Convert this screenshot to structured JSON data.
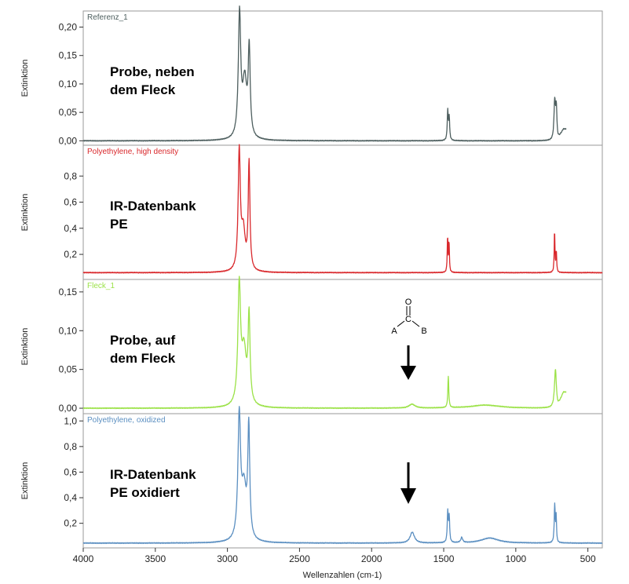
{
  "chart_data": [
    {
      "type": "line",
      "id": "p1",
      "series_title": "Referenz_1",
      "annotation": [
        "Probe, neben",
        "dem Fleck"
      ],
      "color": "#4d5e5e",
      "ylabel": "Extinktion",
      "ylim": [
        -0.005,
        0.22
      ],
      "yticks": [
        0.0,
        0.05,
        0.1,
        0.15,
        0.2
      ],
      "ytick_labels": [
        "0,00",
        "0,05",
        "0,10",
        "0,15",
        "0,20"
      ],
      "baseline": 0.0,
      "x_end": 650,
      "peaks": [
        {
          "x": 2916,
          "y": 0.215,
          "w": 10
        },
        {
          "x": 2880,
          "y": 0.1,
          "w": 18
        },
        {
          "x": 2849,
          "y": 0.15,
          "w": 8
        },
        {
          "x": 1472,
          "y": 0.052,
          "w": 4
        },
        {
          "x": 1462,
          "y": 0.04,
          "w": 4
        },
        {
          "x": 730,
          "y": 0.068,
          "w": 6
        },
        {
          "x": 719,
          "y": 0.055,
          "w": 5
        }
      ],
      "ramps": [
        {
          "x": 710,
          "y": 0.02
        }
      ]
    },
    {
      "type": "line",
      "id": "p2",
      "series_title": "Polyethylene, high density",
      "annotation": [
        "IR-Datenbank",
        "PE"
      ],
      "color": "#d9282c",
      "ylabel": "Extinktion",
      "ylim": [
        0.02,
        1.0
      ],
      "yticks": [
        0.2,
        0.4,
        0.6,
        0.8
      ],
      "ytick_labels": [
        "0,2",
        "0,4",
        "0,6",
        "0,8"
      ],
      "baseline": 0.06,
      "x_end": 400,
      "peaks": [
        {
          "x": 2918,
          "y": 0.9,
          "w": 9
        },
        {
          "x": 2890,
          "y": 0.3,
          "w": 16
        },
        {
          "x": 2850,
          "y": 0.82,
          "w": 7
        },
        {
          "x": 1473,
          "y": 0.27,
          "w": 3
        },
        {
          "x": 1463,
          "y": 0.23,
          "w": 3
        },
        {
          "x": 731,
          "y": 0.32,
          "w": 3
        },
        {
          "x": 719,
          "y": 0.16,
          "w": 3
        }
      ],
      "ramps": []
    },
    {
      "type": "line",
      "id": "p3",
      "series_title": "Fleck_1",
      "annotation": [
        "Probe, auf",
        "dem Fleck"
      ],
      "color": "#9be247",
      "ylabel": "Extinktion",
      "ylim": [
        -0.005,
        0.16
      ],
      "yticks": [
        0.0,
        0.05,
        0.1,
        0.15
      ],
      "ytick_labels": [
        "0,00",
        "0,05",
        "0,10",
        "0,15"
      ],
      "baseline": 0.0,
      "x_end": 650,
      "peaks": [
        {
          "x": 2918,
          "y": 0.15,
          "w": 11
        },
        {
          "x": 2885,
          "y": 0.07,
          "w": 20
        },
        {
          "x": 2850,
          "y": 0.11,
          "w": 8
        },
        {
          "x": 1720,
          "y": 0.005,
          "w": 25
        },
        {
          "x": 1468,
          "y": 0.04,
          "w": 4
        },
        {
          "x": 1210,
          "y": 0.004,
          "w": 120
        },
        {
          "x": 725,
          "y": 0.05,
          "w": 8
        }
      ],
      "ramps": [
        {
          "x": 710,
          "y": 0.02
        }
      ]
    },
    {
      "type": "line",
      "id": "p4",
      "series_title": "Polyethylene, oxidized",
      "annotation": [
        "IR-Datenbank",
        "PE oxidiert"
      ],
      "color": "#5b8fc1",
      "ylabel": "Extinktion",
      "xlabel": "Wellenzahlen (cm-1)",
      "ylim": [
        0.02,
        1.02
      ],
      "yticks": [
        0.2,
        0.4,
        0.6,
        0.8,
        1.0
      ],
      "ytick_labels": [
        "0,2",
        "0,4",
        "0,6",
        "0,8",
        "1,0"
      ],
      "baseline": 0.045,
      "x_end": 400,
      "peaks": [
        {
          "x": 2918,
          "y": 0.95,
          "w": 11
        },
        {
          "x": 2885,
          "y": 0.4,
          "w": 20
        },
        {
          "x": 2852,
          "y": 0.85,
          "w": 8
        },
        {
          "x": 1718,
          "y": 0.085,
          "w": 18
        },
        {
          "x": 1472,
          "y": 0.24,
          "w": 4
        },
        {
          "x": 1462,
          "y": 0.2,
          "w": 4
        },
        {
          "x": 1375,
          "y": 0.04,
          "w": 8
        },
        {
          "x": 1180,
          "y": 0.04,
          "w": 70
        },
        {
          "x": 730,
          "y": 0.3,
          "w": 4
        },
        {
          "x": 720,
          "y": 0.2,
          "w": 3
        }
      ],
      "ramps": []
    }
  ],
  "x_axis": {
    "xlim": [
      4000,
      400
    ],
    "ticks": [
      4000,
      3500,
      3000,
      2500,
      2000,
      1500,
      1000,
      500
    ],
    "tick_labels": [
      "4000",
      "3500",
      "3000",
      "2500",
      "2000",
      "1500",
      "1000",
      "500"
    ]
  },
  "structure": {
    "atoms": [
      "O",
      "C",
      "A",
      "B"
    ]
  }
}
